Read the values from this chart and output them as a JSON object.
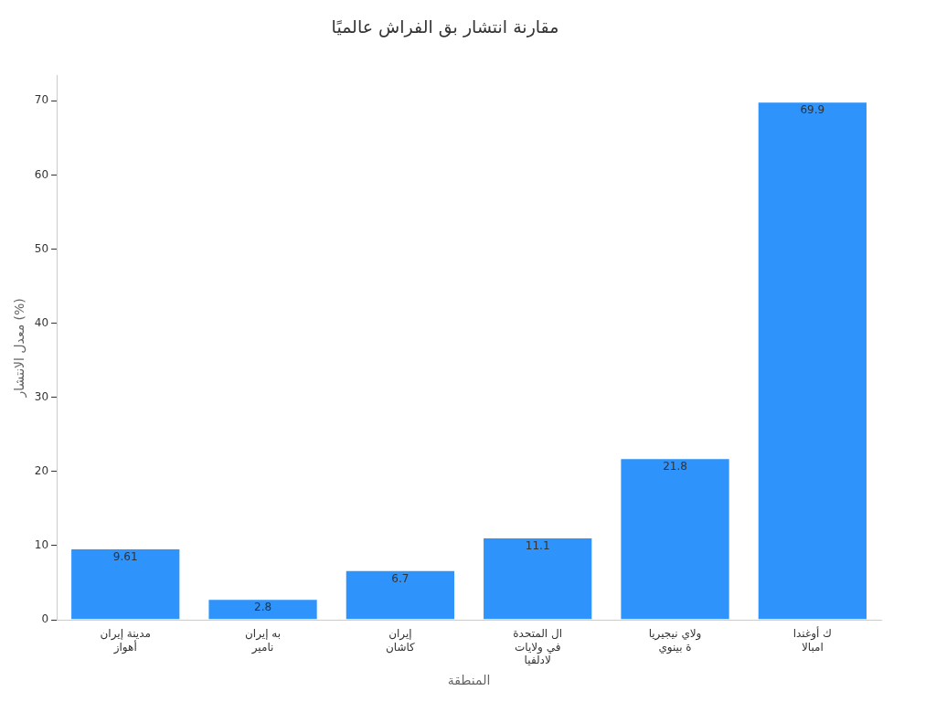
{
  "chart_data": {
    "type": "bar",
    "title": "مقارنة انتشار بق الفراش عالميًا",
    "xlabel": "المنطقة",
    "ylabel": "معدل الانتشار (%)",
    "categories": [
      "مدينة إيران\nأهواز",
      "به إيران\nنامير",
      "إيران\nكاشان",
      "ال المتحدة\nفي ولايات\nلادلفيا",
      "ولاي نيجيريا\nة بينوي",
      "ك أوغندا\nامبالا"
    ],
    "values": [
      9.61,
      2.8,
      6.7,
      11.1,
      21.8,
      69.9
    ],
    "color": "#2e93fa",
    "ylim": [
      0,
      73.4
    ],
    "yticks": [
      0,
      10,
      20,
      30,
      40,
      50,
      60,
      70
    ],
    "grid": false,
    "legend": false,
    "data_labels": true
  }
}
